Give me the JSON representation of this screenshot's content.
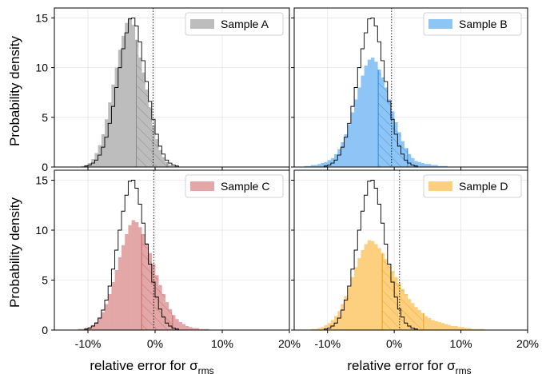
{
  "figure": {
    "ylabel": "Probability density",
    "xlabel_main": "relative error for σ",
    "xlabel_sub": "rms"
  },
  "chart_data": [
    {
      "type": "histogram",
      "panel": "top-left",
      "series": [
        {
          "name": "Sample A",
          "color": "#bdbdbd",
          "edge": "#8a8a8a",
          "bin_start": -0.15,
          "bin_width": 0.005,
          "values": [
            0,
            0,
            0,
            0,
            0,
            0,
            0,
            0,
            0.1,
            0.2,
            0.4,
            0.8,
            1.4,
            2.2,
            3.3,
            4.8,
            6.5,
            8.3,
            10.0,
            11.8,
            13.2,
            14.5,
            15.0,
            14.3,
            12.8,
            11.0,
            9.5,
            7.8,
            6.0,
            4.2,
            2.8,
            1.7,
            1.0,
            0.5,
            0.2,
            0.1,
            0,
            0,
            0,
            0,
            0,
            0,
            0,
            0,
            0,
            0,
            0,
            0,
            0,
            0,
            0,
            0,
            0,
            0,
            0,
            0,
            0,
            0,
            0,
            0,
            0,
            0,
            0,
            0,
            0,
            0,
            0,
            0,
            0,
            0
          ],
          "median": -0.003,
          "q_low": -0.028,
          "q_high": 0.018,
          "legend_loc": "upper right"
        }
      ],
      "reference": {
        "values_ref": "reference_hist"
      },
      "xlim": [
        -0.15,
        0.2
      ],
      "ylim": [
        0,
        16
      ],
      "yticks": [
        0,
        5,
        10,
        15
      ],
      "yticklabels": [
        "0",
        "5",
        "10",
        "15"
      ],
      "xticks": [
        -0.1,
        0,
        0.1,
        0.2
      ],
      "xticklabels": [],
      "grid": true
    },
    {
      "type": "histogram",
      "panel": "top-right",
      "series": [
        {
          "name": "Sample B",
          "color": "#8ec5f7",
          "edge": "#3b8fd9",
          "bin_start": -0.15,
          "bin_width": 0.005,
          "values": [
            0,
            0,
            0,
            0.1,
            0.1,
            0.2,
            0.2,
            0.3,
            0.4,
            0.5,
            0.7,
            0.9,
            1.3,
            1.8,
            2.5,
            3.3,
            4.3,
            5.5,
            6.8,
            8.0,
            9.2,
            10.2,
            10.8,
            11.0,
            10.6,
            9.8,
            9.0,
            8.0,
            6.8,
            5.6,
            4.5,
            3.5,
            2.6,
            1.9,
            1.3,
            0.9,
            0.6,
            0.5,
            0.4,
            0.3,
            0.3,
            0.2,
            0.2,
            0.1,
            0.1,
            0.1,
            0,
            0,
            0,
            0,
            0,
            0,
            0,
            0,
            0,
            0,
            0,
            0,
            0,
            0,
            0,
            0,
            0,
            0,
            0,
            0,
            0,
            0,
            0,
            0
          ],
          "median": -0.004,
          "q_low": -0.024,
          "q_high": 0.02,
          "legend_loc": "upper right"
        }
      ],
      "xlim": [
        -0.15,
        0.2
      ],
      "ylim": [
        0,
        16
      ],
      "yticks": [
        0,
        5,
        10,
        15
      ],
      "yticklabels": [],
      "xticks": [
        -0.1,
        0,
        0.1,
        0.2
      ],
      "xticklabels": [],
      "grid": true
    },
    {
      "type": "histogram",
      "panel": "bottom-left",
      "series": [
        {
          "name": "Sample C",
          "color": "#e3a7a7",
          "edge": "#c96a6a",
          "bin_start": -0.15,
          "bin_width": 0.005,
          "values": [
            0,
            0,
            0,
            0,
            0,
            0,
            0,
            0.1,
            0.1,
            0.2,
            0.3,
            0.5,
            0.8,
            1.2,
            1.8,
            2.6,
            3.6,
            4.8,
            6.0,
            7.3,
            8.5,
            9.6,
            10.5,
            11.0,
            10.8,
            10.3,
            9.6,
            8.7,
            7.7,
            6.6,
            5.5,
            4.5,
            3.6,
            2.8,
            2.1,
            1.5,
            1.1,
            0.8,
            0.6,
            0.4,
            0.3,
            0.2,
            0.2,
            0.1,
            0.1,
            0.1,
            0,
            0,
            0,
            0,
            0,
            0,
            0,
            0,
            0,
            0,
            0,
            0,
            0,
            0,
            0,
            0,
            0,
            0,
            0,
            0,
            0,
            0,
            0,
            0
          ],
          "median": -0.002,
          "q_low": -0.02,
          "q_high": 0.026,
          "legend_loc": "upper right"
        }
      ],
      "xlim": [
        -0.15,
        0.2
      ],
      "ylim": [
        0,
        16
      ],
      "yticks": [
        0,
        5,
        10,
        15
      ],
      "yticklabels": [
        "0",
        "5",
        "10",
        "15"
      ],
      "xticks": [
        -0.1,
        0,
        0.1,
        0.2
      ],
      "xticklabels": [
        "-10%",
        "0%",
        "10%",
        "20%"
      ],
      "grid": true
    },
    {
      "type": "histogram",
      "panel": "bottom-right",
      "series": [
        {
          "name": "Sample D",
          "color": "#fdd07f",
          "edge": "#f2a31f",
          "bin_start": -0.15,
          "bin_width": 0.005,
          "values": [
            0,
            0,
            0,
            0,
            0,
            0.1,
            0.1,
            0.2,
            0.3,
            0.5,
            0.7,
            1.0,
            1.4,
            1.9,
            2.6,
            3.4,
            4.3,
            5.3,
            6.3,
            7.2,
            8.0,
            8.6,
            9.0,
            8.9,
            8.6,
            8.2,
            7.7,
            7.1,
            6.5,
            5.9,
            5.3,
            4.7,
            4.1,
            3.6,
            3.1,
            2.7,
            2.3,
            2.0,
            1.7,
            1.4,
            1.2,
            1.0,
            0.9,
            0.8,
            0.7,
            0.6,
            0.5,
            0.4,
            0.4,
            0.3,
            0.3,
            0.2,
            0.2,
            0.1,
            0.1,
            0.1,
            0.1,
            0,
            0,
            0,
            0,
            0,
            0,
            0,
            0,
            0,
            0,
            0,
            0,
            0
          ],
          "median": 0.008,
          "q_low": -0.018,
          "q_high": 0.044,
          "legend_loc": "upper right"
        }
      ],
      "xlim": [
        -0.15,
        0.2
      ],
      "ylim": [
        0,
        16
      ],
      "yticks": [
        0,
        5,
        10,
        15
      ],
      "yticklabels": [],
      "xticks": [
        -0.1,
        0,
        0.1,
        0.2
      ],
      "xticklabels": [
        "-10%",
        "0%",
        "10%",
        "20%"
      ],
      "grid": true
    }
  ],
  "reference_hist": {
    "bin_start": -0.15,
    "bin_width": 0.005,
    "values": [
      0,
      0,
      0,
      0,
      0,
      0,
      0,
      0,
      0,
      0.1,
      0.2,
      0.4,
      0.7,
      1.2,
      2.0,
      3.0,
      4.4,
      6.1,
      8.0,
      10.0,
      11.9,
      13.5,
      14.9,
      15.0,
      14.2,
      12.6,
      10.7,
      8.6,
      6.6,
      4.8,
      3.3,
      2.1,
      1.3,
      0.7,
      0.4,
      0.2,
      0.1,
      0,
      0,
      0,
      0,
      0,
      0,
      0,
      0,
      0,
      0,
      0,
      0,
      0,
      0,
      0,
      0,
      0,
      0,
      0,
      0,
      0,
      0,
      0,
      0,
      0,
      0,
      0,
      0,
      0,
      0,
      0,
      0,
      0
    ]
  }
}
